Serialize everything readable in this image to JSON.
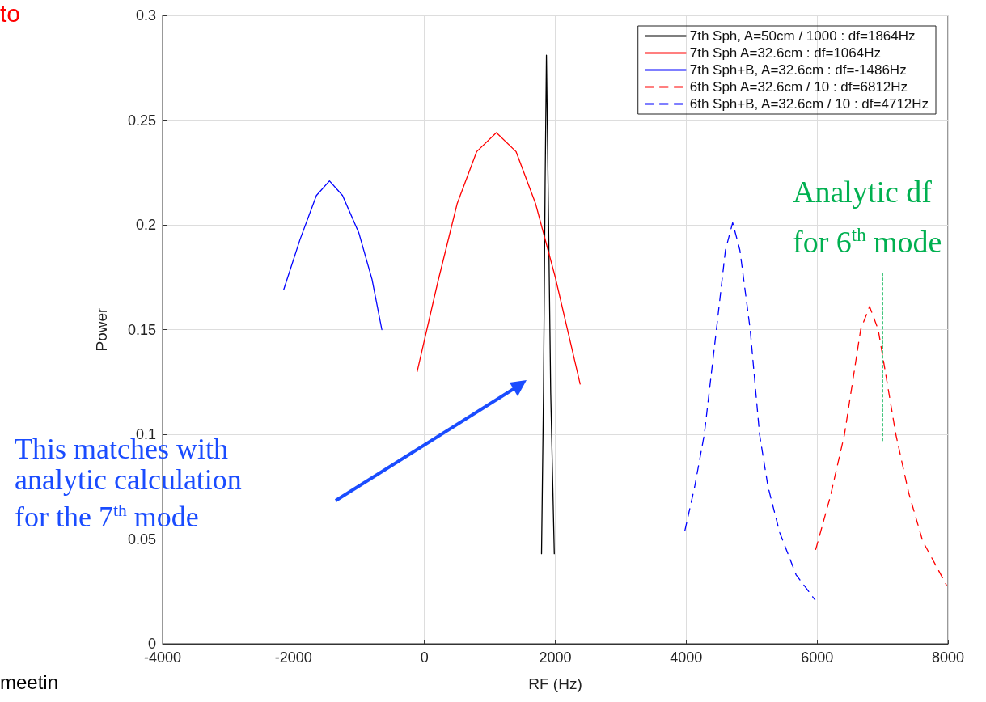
{
  "chart_data": {
    "type": "line",
    "xlabel": "RF (Hz)",
    "ylabel": "Power",
    "xlim": [
      -4000,
      8000
    ],
    "xticks": [
      -4000,
      -2000,
      0,
      2000,
      4000,
      6000,
      8000
    ],
    "ylim": [
      0,
      0.3
    ],
    "yticks": [
      0,
      0.05,
      0.1,
      0.15,
      0.2,
      0.25,
      0.3
    ],
    "grid": true,
    "legend": "top right",
    "marker": "none",
    "series": [
      {
        "name": "7th Sph, A=50cm / 1000 : df=1864Hz",
        "color": "#000000",
        "line_style": "solid",
        "x": [
          1790,
          1820,
          1845,
          1865,
          1890,
          1930,
          1985
        ],
        "values": [
          0.043,
          0.12,
          0.22,
          0.281,
          0.22,
          0.12,
          0.043
        ]
      },
      {
        "name": "7th Sph A=32.6cm : df=1064Hz",
        "color": "#ff0000",
        "line_style": "solid",
        "x": [
          -110,
          200,
          500,
          800,
          1100,
          1400,
          1700,
          2000,
          2380
        ],
        "values": [
          0.13,
          0.172,
          0.21,
          0.235,
          0.244,
          0.235,
          0.21,
          0.175,
          0.124
        ]
      },
      {
        "name": "7th Sph+B, A=32.6cm : df=-1486Hz",
        "color": "#0000ff",
        "line_style": "solid",
        "x": [
          -2150,
          -1900,
          -1650,
          -1450,
          -1250,
          -1000,
          -800,
          -650
        ],
        "values": [
          0.169,
          0.193,
          0.214,
          0.221,
          0.214,
          0.196,
          0.174,
          0.15
        ]
      },
      {
        "name": "6th Sph A=32.6cm / 10 : df=6812Hz",
        "color": "#ff0000",
        "line_style": "dashed",
        "x": [
          5979,
          6200,
          6419,
          6666,
          6802,
          6934,
          7203,
          7400,
          7614,
          7977
        ],
        "values": [
          0.045,
          0.07,
          0.1,
          0.15,
          0.161,
          0.15,
          0.1,
          0.072,
          0.049,
          0.028
        ]
      },
      {
        "name": "6th Sph+B, A=32.6cm / 10 : df=4712Hz",
        "color": "#0000ff",
        "line_style": "dashed",
        "x": [
          3980,
          4130,
          4277,
          4462,
          4600,
          4710,
          4820,
          4978,
          5121,
          5250,
          5430,
          5678,
          5967
        ],
        "values": [
          0.054,
          0.075,
          0.1,
          0.15,
          0.188,
          0.201,
          0.188,
          0.15,
          0.1,
          0.075,
          0.053,
          0.033,
          0.021
        ]
      },
      {
        "color": "#00b050",
        "line_style": "dotted",
        "x": [
          7000,
          7000
        ],
        "values": [
          0.097,
          0.178
        ]
      }
    ],
    "annotations": [
      "to",
      "This matches with analytic calculation for the 7$^{th}$ mode",
      "Analytic df for 6$^{th}$ mode",
      "meetin"
    ]
  }
}
